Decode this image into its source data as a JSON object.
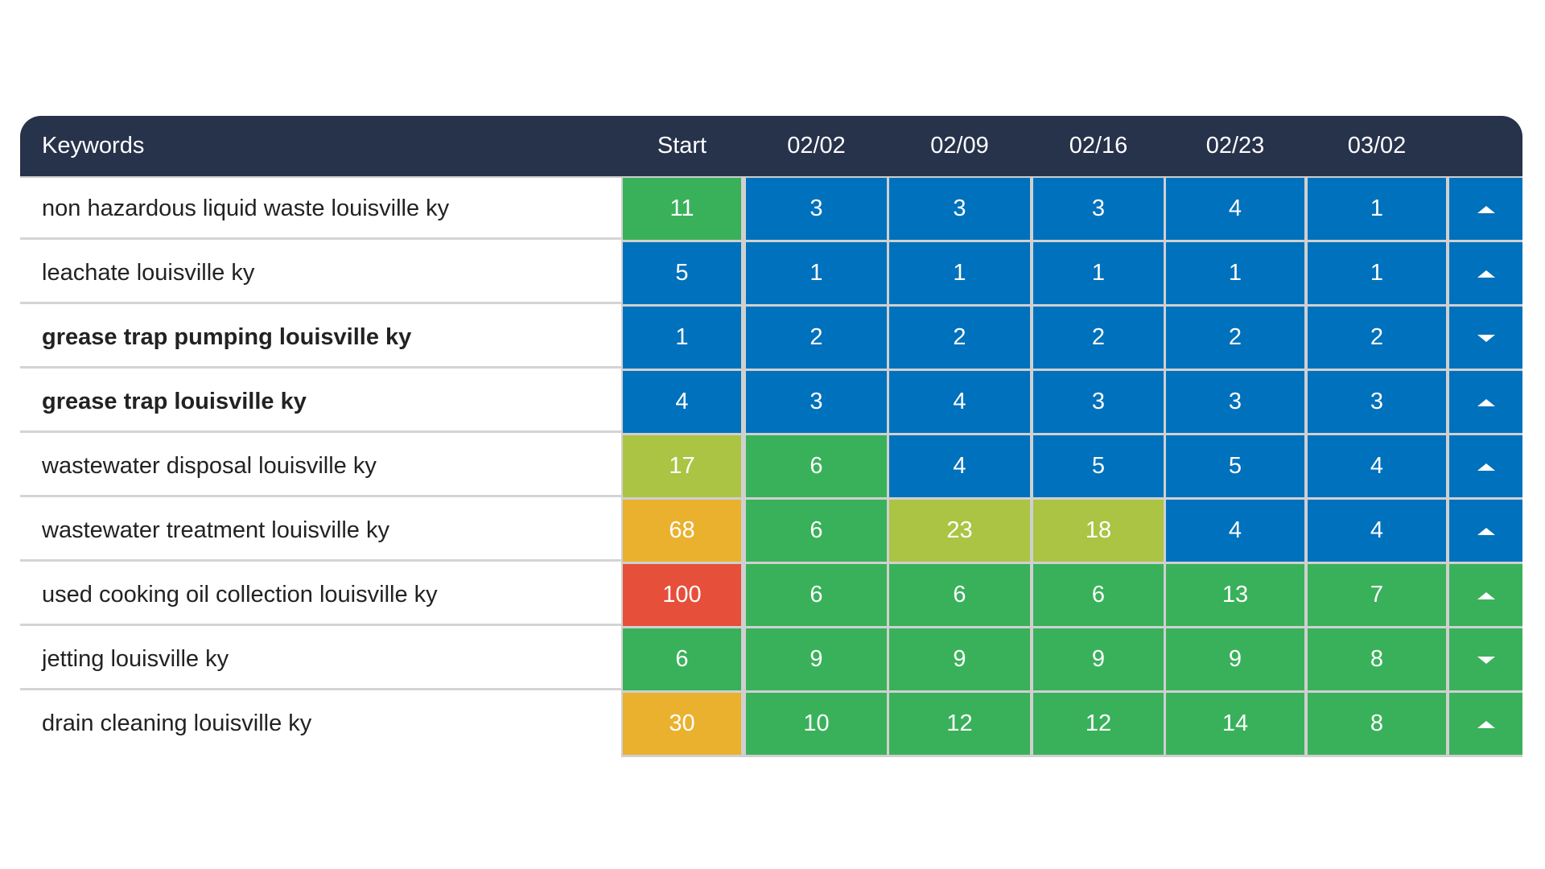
{
  "colors": {
    "header": "#27324b",
    "blue": "#0071bc",
    "green": "#39b15a",
    "lime": "#abc444",
    "orange": "#eab12e",
    "red": "#e64f3a"
  },
  "header": {
    "keywords": "Keywords",
    "columns": [
      "Start",
      "02/02",
      "02/09",
      "02/16",
      "02/23",
      "03/02"
    ]
  },
  "rows": [
    {
      "keyword": "non hazardous liquid waste louisville ky",
      "bold": false,
      "values": [
        "11",
        "3",
        "3",
        "3",
        "4",
        "1"
      ],
      "colors": [
        "green",
        "blue",
        "blue",
        "blue",
        "blue",
        "blue"
      ],
      "trend": "up",
      "trend_color": "blue"
    },
    {
      "keyword": "leachate louisville ky",
      "bold": false,
      "values": [
        "5",
        "1",
        "1",
        "1",
        "1",
        "1"
      ],
      "colors": [
        "blue",
        "blue",
        "blue",
        "blue",
        "blue",
        "blue"
      ],
      "trend": "up",
      "trend_color": "blue"
    },
    {
      "keyword": "grease trap pumping louisville ky",
      "bold": true,
      "values": [
        "1",
        "2",
        "2",
        "2",
        "2",
        "2"
      ],
      "colors": [
        "blue",
        "blue",
        "blue",
        "blue",
        "blue",
        "blue"
      ],
      "trend": "down",
      "trend_color": "blue"
    },
    {
      "keyword": "grease trap louisville ky",
      "bold": true,
      "values": [
        "4",
        "3",
        "4",
        "3",
        "3",
        "3"
      ],
      "colors": [
        "blue",
        "blue",
        "blue",
        "blue",
        "blue",
        "blue"
      ],
      "trend": "up",
      "trend_color": "blue"
    },
    {
      "keyword": "wastewater disposal louisville ky",
      "bold": false,
      "values": [
        "17",
        "6",
        "4",
        "5",
        "5",
        "4"
      ],
      "colors": [
        "lime",
        "green",
        "blue",
        "blue",
        "blue",
        "blue"
      ],
      "trend": "up",
      "trend_color": "blue"
    },
    {
      "keyword": "wastewater treatment louisville ky",
      "bold": false,
      "values": [
        "68",
        "6",
        "23",
        "18",
        "4",
        "4"
      ],
      "colors": [
        "orange",
        "green",
        "lime",
        "lime",
        "blue",
        "blue"
      ],
      "trend": "up",
      "trend_color": "blue"
    },
    {
      "keyword": "used cooking oil collection louisville ky",
      "bold": false,
      "values": [
        "100",
        "6",
        "6",
        "6",
        "13",
        "7"
      ],
      "colors": [
        "red",
        "green",
        "green",
        "green",
        "green",
        "green"
      ],
      "trend": "up",
      "trend_color": "green"
    },
    {
      "keyword": "jetting louisville ky",
      "bold": false,
      "values": [
        "6",
        "9",
        "9",
        "9",
        "9",
        "8"
      ],
      "colors": [
        "green",
        "green",
        "green",
        "green",
        "green",
        "green"
      ],
      "trend": "down",
      "trend_color": "green"
    },
    {
      "keyword": "drain cleaning louisville ky",
      "bold": false,
      "values": [
        "30",
        "10",
        "12",
        "12",
        "14",
        "8"
      ],
      "colors": [
        "orange",
        "green",
        "green",
        "green",
        "green",
        "green"
      ],
      "trend": "up",
      "trend_color": "green"
    }
  ]
}
